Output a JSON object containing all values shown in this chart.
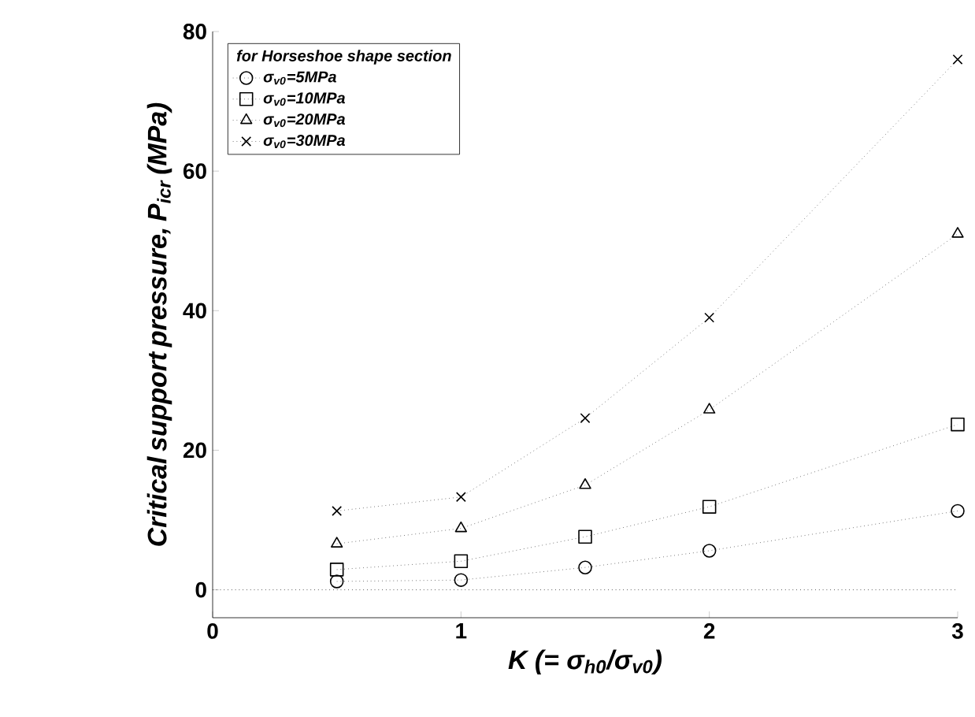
{
  "chart_data": {
    "type": "line",
    "xlabel": "K (= σ$_{h0}$/σ$_{v0}$)",
    "ylabel": "Critical support pressure, P$_{icr}$ (MPa)",
    "legend_title": "for Horseshoe shape section",
    "x": [
      0.5,
      1,
      1.5,
      2,
      3
    ],
    "series": [
      {
        "name": "σ$_{v0}$=5MPa",
        "color": "#333333",
        "marker": "circle",
        "values": [
          1.2,
          1.4,
          3.2,
          5.6,
          11.3
        ]
      },
      {
        "name": "σ$_{v0}$=10MPa",
        "color": "#333333",
        "marker": "square",
        "values": [
          2.9,
          4.1,
          7.6,
          11.9,
          23.7
        ]
      },
      {
        "name": "σ$_{v0}$=20MPa",
        "color": "#333333",
        "marker": "triangle",
        "values": [
          6.6,
          8.8,
          15,
          25.8,
          51
        ]
      },
      {
        "name": "σ$_{v0}$=30MPa",
        "color": "#333333",
        "marker": "cross",
        "values": [
          11.3,
          13.3,
          24.6,
          39,
          76
        ]
      }
    ],
    "line_style": "dotted",
    "xlim": [
      0,
      3
    ],
    "ylim": [
      -4,
      80
    ],
    "xticks": [
      0,
      1,
      2,
      3
    ],
    "yticks": [
      0,
      20,
      40,
      60,
      80
    ],
    "ref_lines": [
      {
        "axis": "y",
        "value": 0,
        "color": "#000000",
        "line_style": "dotted"
      }
    ],
    "grid": false,
    "legend": "top left"
  }
}
